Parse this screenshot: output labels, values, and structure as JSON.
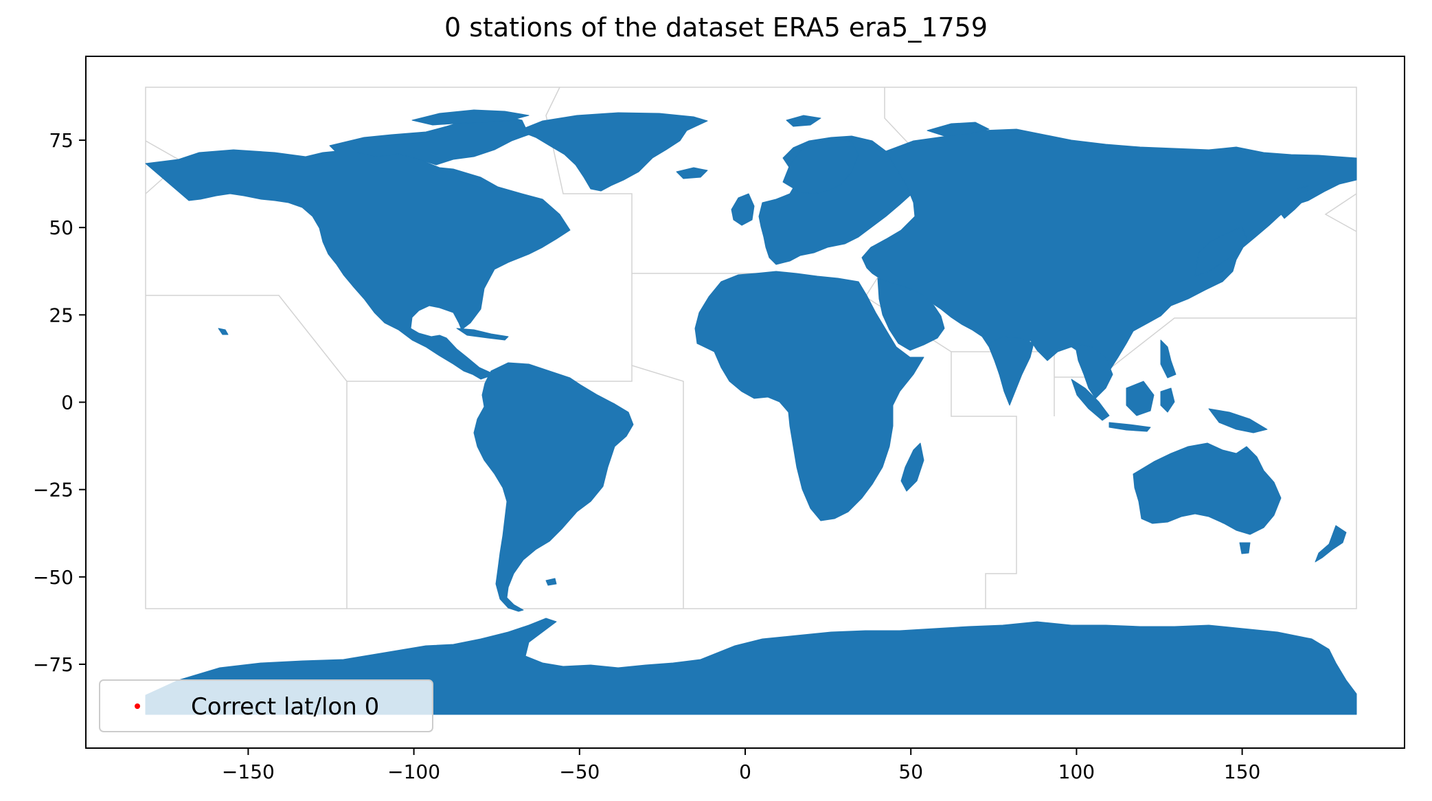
{
  "chart_data": {
    "type": "scatter",
    "title": "0 stations of the dataset ERA5 era5_1759",
    "xlabel": "",
    "ylabel": "",
    "xlim": [
      -199,
      199
    ],
    "ylim": [
      -99,
      99
    ],
    "xticks": [
      -150,
      -100,
      -50,
      0,
      50,
      100,
      150
    ],
    "xtick_labels": [
      "−150",
      "−100",
      "−50",
      "0",
      "50",
      "100",
      "150"
    ],
    "yticks": [
      75,
      50,
      25,
      0,
      -25,
      -50,
      -75
    ],
    "ytick_labels": [
      "75",
      "50",
      "25",
      "0",
      "−25",
      "−50",
      "−75"
    ],
    "series": [
      {
        "name": "Correct lat/lon 0",
        "color": "#ff0000",
        "points": []
      }
    ],
    "legend_position": "lower-left",
    "land_color": "#1f77b4",
    "boundary_color": "#d3d3d3"
  }
}
